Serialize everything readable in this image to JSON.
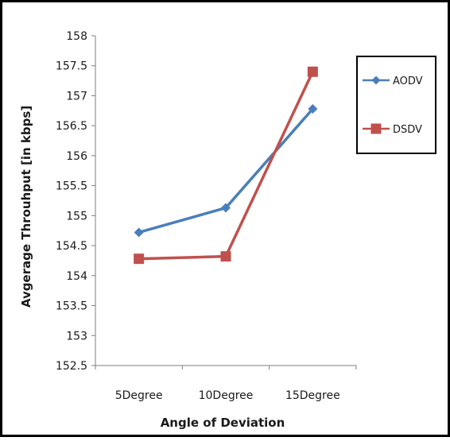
{
  "chart_data": {
    "type": "line",
    "title": "",
    "xlabel": "Angle of Deviation",
    "ylabel": "Avgerage Throuhput [in kbps]",
    "categories": [
      "5Degree",
      "10Degree",
      "15Degree"
    ],
    "ylim": [
      152.5,
      158
    ],
    "yticks": [
      "152.5",
      "153",
      "153.5",
      "154",
      "154.5",
      "155",
      "155.5",
      "156",
      "156.5",
      "157",
      "157.5",
      "158"
    ],
    "grid": false,
    "legend_position": "right",
    "series": [
      {
        "name": "AODV",
        "color": "#4a7ebb",
        "marker": "diamond",
        "values": [
          154.72,
          155.13,
          156.78
        ]
      },
      {
        "name": "DSDV",
        "color": "#c0504d",
        "marker": "square",
        "values": [
          154.28,
          154.32,
          157.4
        ]
      }
    ]
  }
}
